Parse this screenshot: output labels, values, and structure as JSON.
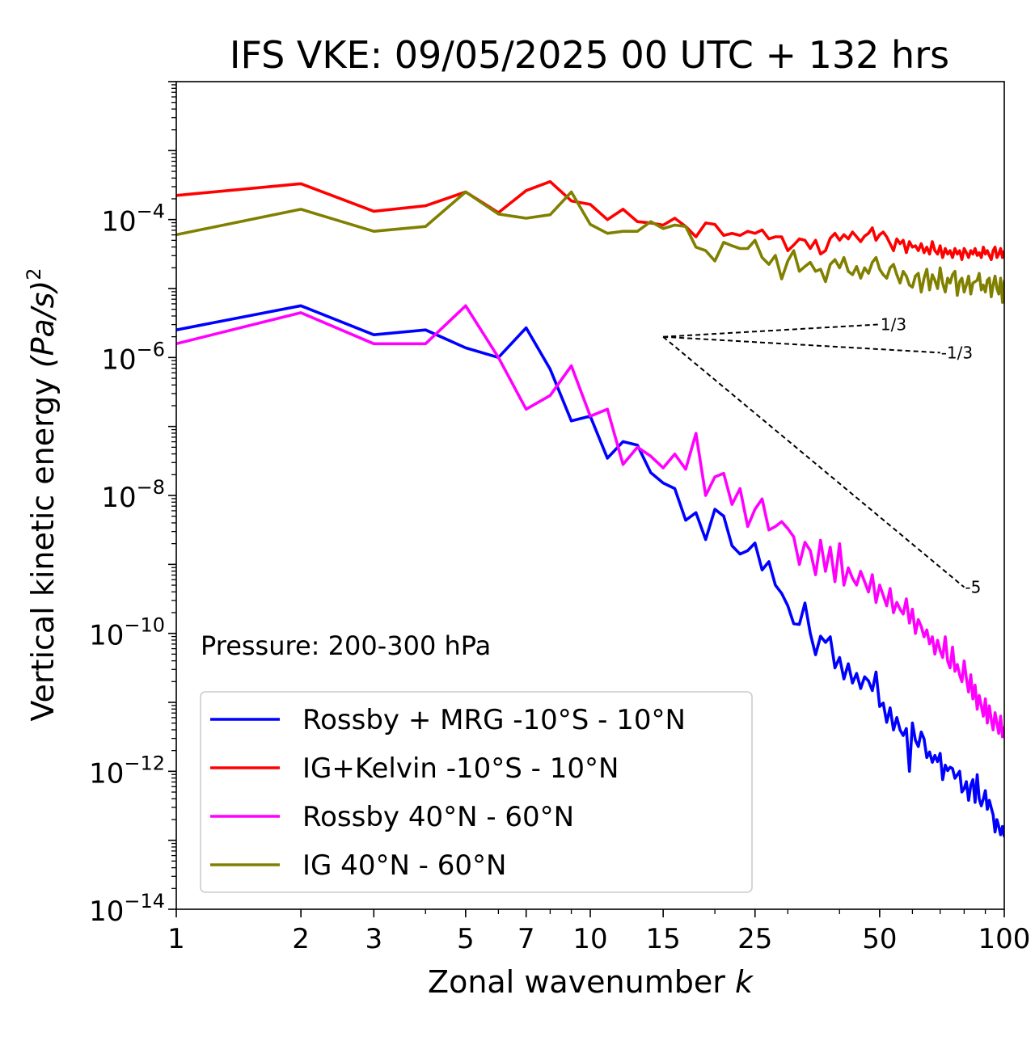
{
  "chart_data": {
    "type": "line",
    "title": "IFS VKE: 09/05/2025 00 UTC + 132 hrs",
    "xlabel": "Zonal wavenumber",
    "xlabel_var": "k",
    "ylabel": "Vertical kinetic energy",
    "ylabel_units": "(Pa/s)",
    "ylabel_power": "2",
    "xscale": "log",
    "yscale": "log",
    "xlim": [
      1,
      100
    ],
    "ylim": [
      1e-14,
      0.01
    ],
    "x_ticks": [
      {
        "value": 1,
        "label": "1"
      },
      {
        "value": 2,
        "label": "2"
      },
      {
        "value": 3,
        "label": "3"
      },
      {
        "value": 5,
        "label": "5"
      },
      {
        "value": 7,
        "label": "7"
      },
      {
        "value": 10,
        "label": "10"
      },
      {
        "value": 15,
        "label": "15"
      },
      {
        "value": 25,
        "label": "25"
      },
      {
        "value": 50,
        "label": "50"
      },
      {
        "value": 100,
        "label": "100"
      }
    ],
    "y_ticks": [
      {
        "value": -4,
        "base": "10",
        "exp": "−4"
      },
      {
        "value": -6,
        "base": "10",
        "exp": "−6"
      },
      {
        "value": -8,
        "base": "10",
        "exp": "−8"
      },
      {
        "value": -10,
        "base": "10",
        "exp": "−10"
      },
      {
        "value": -12,
        "base": "10",
        "exp": "−12"
      },
      {
        "value": -14,
        "base": "10",
        "exp": "−14"
      }
    ],
    "annotation": "Pressure: 200-300 hPa",
    "legend_position": "lower-left",
    "reference_slopes": [
      {
        "label": "1/3",
        "x": [
          15,
          50
        ],
        "log10_y": [
          -5.7,
          -5.52
        ]
      },
      {
        "label": "-1/3",
        "x": [
          15,
          70
        ],
        "log10_y": [
          -5.7,
          -5.93
        ]
      },
      {
        "label": "-5",
        "x": [
          15,
          80
        ],
        "log10_y": [
          -5.7,
          -9.33
        ]
      }
    ],
    "series": [
      {
        "name": "Rossby + MRG -10°S - 10°N",
        "color": "#0000ff",
        "x": [
          1,
          2,
          3,
          4,
          5,
          6,
          7,
          8,
          9,
          10,
          11,
          12,
          13,
          14,
          15,
          16,
          17,
          18,
          19,
          20,
          21,
          22,
          23,
          24,
          25,
          26,
          27,
          28,
          29,
          30,
          31,
          32,
          33,
          34,
          35,
          36,
          37,
          38,
          39,
          40,
          41,
          42,
          43,
          44,
          45,
          46,
          47,
          48,
          49,
          50,
          51,
          52,
          53,
          54,
          55,
          56,
          57,
          58,
          59,
          60,
          61,
          62,
          63,
          64,
          65,
          66,
          67,
          68,
          69,
          70,
          71,
          72,
          73,
          74,
          75,
          76,
          77,
          78,
          79,
          80,
          81,
          82,
          83,
          84,
          85,
          86,
          87,
          88,
          89,
          90,
          91,
          92,
          93,
          94,
          95,
          96,
          97,
          98,
          99,
          100
        ],
        "log10_y": [
          -5.6,
          -5.25,
          -5.67,
          -5.6,
          -5.86,
          -6.0,
          -5.57,
          -6.17,
          -6.92,
          -6.85,
          -7.46,
          -7.22,
          -7.27,
          -7.67,
          -7.82,
          -7.9,
          -8.36,
          -8.25,
          -8.64,
          -8.2,
          -8.3,
          -8.73,
          -8.85,
          -8.8,
          -8.69,
          -9.08,
          -8.96,
          -9.3,
          -9.42,
          -9.6,
          -9.86,
          -9.87,
          -9.56,
          -10.0,
          -10.31,
          -10.04,
          -10.13,
          -10.05,
          -10.5,
          -10.35,
          -10.66,
          -10.44,
          -10.72,
          -10.58,
          -10.8,
          -10.63,
          -10.69,
          -10.83,
          -10.56,
          -11.06,
          -11.01,
          -11.29,
          -11.08,
          -11.4,
          -11.22,
          -11.4,
          -11.48,
          -11.38,
          -12.0,
          -11.3,
          -11.55,
          -11.64,
          -11.43,
          -11.53,
          -11.8,
          -11.72,
          -11.87,
          -11.77,
          -11.86,
          -11.74,
          -12.12,
          -11.91,
          -11.99,
          -11.94,
          -11.96,
          -12.1,
          -12.05,
          -12.0,
          -12.3,
          -12.25,
          -12.15,
          -12.42,
          -12.2,
          -12.12,
          -12.45,
          -12.05,
          -12.4,
          -12.5,
          -12.4,
          -12.28,
          -12.55,
          -12.42,
          -12.53,
          -12.63,
          -12.88,
          -12.7,
          -12.8,
          -12.92,
          -12.8,
          -12.95
        ]
      },
      {
        "name": "IG+Kelvin -10°S - 10°N",
        "color": "#ff0000",
        "x": [
          1,
          2,
          3,
          4,
          5,
          6,
          7,
          8,
          9,
          10,
          11,
          12,
          13,
          14,
          15,
          16,
          17,
          18,
          19,
          20,
          21,
          22,
          23,
          24,
          25,
          26,
          27,
          28,
          29,
          30,
          31,
          32,
          33,
          34,
          35,
          36,
          37,
          38,
          39,
          40,
          41,
          42,
          43,
          44,
          45,
          46,
          47,
          48,
          49,
          50,
          51,
          52,
          53,
          54,
          55,
          56,
          57,
          58,
          59,
          60,
          61,
          62,
          63,
          64,
          65,
          66,
          67,
          68,
          69,
          70,
          71,
          72,
          73,
          74,
          75,
          76,
          77,
          78,
          79,
          80,
          81,
          82,
          83,
          84,
          85,
          86,
          87,
          88,
          89,
          90,
          91,
          92,
          93,
          94,
          95,
          96,
          97,
          98,
          99,
          100
        ],
        "log10_y": [
          -3.65,
          -3.48,
          -3.88,
          -3.8,
          -3.6,
          -3.9,
          -3.58,
          -3.45,
          -3.73,
          -3.78,
          -4.0,
          -3.85,
          -4.03,
          -4.05,
          -4.08,
          -3.98,
          -4.1,
          -4.25,
          -4.05,
          -4.07,
          -4.23,
          -4.2,
          -4.23,
          -4.17,
          -4.2,
          -4.15,
          -4.28,
          -4.25,
          -4.25,
          -4.45,
          -4.37,
          -4.28,
          -4.3,
          -4.42,
          -4.3,
          -4.5,
          -4.45,
          -4.27,
          -4.2,
          -4.3,
          -4.22,
          -4.28,
          -4.18,
          -4.25,
          -4.32,
          -4.24,
          -4.2,
          -4.12,
          -4.3,
          -4.22,
          -4.18,
          -4.25,
          -4.35,
          -4.45,
          -4.28,
          -4.35,
          -4.3,
          -4.48,
          -4.32,
          -4.4,
          -4.38,
          -4.45,
          -4.35,
          -4.48,
          -4.4,
          -4.5,
          -4.32,
          -4.45,
          -4.5,
          -4.38,
          -4.55,
          -4.42,
          -4.5,
          -4.45,
          -4.55,
          -4.42,
          -4.5,
          -4.45,
          -4.58,
          -4.42,
          -4.48,
          -4.55,
          -4.45,
          -4.5,
          -4.42,
          -4.52,
          -4.48,
          -4.55,
          -4.4,
          -4.5,
          -4.45,
          -4.52,
          -4.58,
          -4.45,
          -4.4,
          -4.55,
          -4.5,
          -4.42,
          -4.55,
          -4.45
        ]
      },
      {
        "name": "Rossby 40°N - 60°N",
        "color": "#ff00ff",
        "x": [
          1,
          2,
          3,
          4,
          5,
          6,
          7,
          8,
          9,
          10,
          11,
          12,
          13,
          14,
          15,
          16,
          17,
          18,
          19,
          20,
          21,
          22,
          23,
          24,
          25,
          26,
          27,
          28,
          29,
          30,
          31,
          32,
          33,
          34,
          35,
          36,
          37,
          38,
          39,
          40,
          41,
          42,
          43,
          44,
          45,
          46,
          47,
          48,
          49,
          50,
          51,
          52,
          53,
          54,
          55,
          56,
          57,
          58,
          59,
          60,
          61,
          62,
          63,
          64,
          65,
          66,
          67,
          68,
          69,
          70,
          71,
          72,
          73,
          74,
          75,
          76,
          77,
          78,
          79,
          80,
          81,
          82,
          83,
          84,
          85,
          86,
          87,
          88,
          89,
          90,
          91,
          92,
          93,
          94,
          95,
          96,
          97,
          98,
          99,
          100
        ],
        "log10_y": [
          -5.8,
          -5.35,
          -5.8,
          -5.8,
          -5.25,
          -6.0,
          -6.75,
          -6.55,
          -6.12,
          -6.85,
          -6.75,
          -7.55,
          -7.3,
          -7.43,
          -7.6,
          -7.4,
          -7.62,
          -7.1,
          -8.0,
          -7.73,
          -7.68,
          -8.13,
          -7.9,
          -8.45,
          -8.2,
          -8.05,
          -8.5,
          -8.45,
          -8.38,
          -8.48,
          -8.6,
          -9.0,
          -8.68,
          -8.8,
          -9.15,
          -8.65,
          -9.1,
          -8.75,
          -9.25,
          -8.7,
          -9.3,
          -9.05,
          -9.2,
          -9.3,
          -9.1,
          -9.25,
          -9.4,
          -9.15,
          -9.55,
          -9.3,
          -9.45,
          -9.6,
          -9.35,
          -9.7,
          -9.55,
          -9.65,
          -9.72,
          -9.5,
          -9.85,
          -9.65,
          -10.0,
          -9.8,
          -9.9,
          -10.05,
          -9.95,
          -10.15,
          -10.05,
          -10.3,
          -10.1,
          -10.25,
          -10.35,
          -10.05,
          -10.4,
          -10.5,
          -10.2,
          -10.55,
          -10.45,
          -10.6,
          -10.7,
          -10.4,
          -10.65,
          -10.85,
          -10.6,
          -10.95,
          -10.75,
          -11.1,
          -10.9,
          -11.05,
          -11.2,
          -10.95,
          -11.3,
          -11.05,
          -11.25,
          -11.4,
          -11.15,
          -11.3,
          -11.45,
          -11.2,
          -11.5,
          -11.35
        ]
      },
      {
        "name": "IG 40°N - 60°N",
        "color": "#808000",
        "x": [
          1,
          2,
          3,
          4,
          5,
          6,
          7,
          8,
          9,
          10,
          11,
          12,
          13,
          14,
          15,
          16,
          17,
          18,
          19,
          20,
          21,
          22,
          23,
          24,
          25,
          26,
          27,
          28,
          29,
          30,
          31,
          32,
          33,
          34,
          35,
          36,
          37,
          38,
          39,
          40,
          41,
          42,
          43,
          44,
          45,
          46,
          47,
          48,
          49,
          50,
          51,
          52,
          53,
          54,
          55,
          56,
          57,
          58,
          59,
          60,
          61,
          62,
          63,
          64,
          65,
          66,
          67,
          68,
          69,
          70,
          71,
          72,
          73,
          74,
          75,
          76,
          77,
          78,
          79,
          80,
          81,
          82,
          83,
          84,
          85,
          86,
          87,
          88,
          89,
          90,
          91,
          92,
          93,
          94,
          95,
          96,
          97,
          98,
          99,
          100
        ],
        "log10_y": [
          -4.22,
          -3.85,
          -4.17,
          -4.1,
          -3.6,
          -3.92,
          -3.98,
          -3.93,
          -3.6,
          -4.07,
          -4.2,
          -4.17,
          -4.17,
          -4.03,
          -4.13,
          -4.08,
          -4.1,
          -4.4,
          -4.45,
          -4.6,
          -4.33,
          -4.38,
          -4.42,
          -4.42,
          -4.3,
          -4.55,
          -4.65,
          -4.52,
          -4.86,
          -4.6,
          -4.45,
          -4.75,
          -4.68,
          -4.62,
          -4.75,
          -4.72,
          -4.9,
          -4.65,
          -4.58,
          -4.7,
          -4.55,
          -4.75,
          -4.8,
          -4.68,
          -4.85,
          -4.7,
          -4.78,
          -4.62,
          -4.55,
          -4.72,
          -4.8,
          -4.85,
          -4.7,
          -4.65,
          -4.8,
          -4.92,
          -4.75,
          -4.82,
          -4.95,
          -4.98,
          -4.82,
          -4.78,
          -5.05,
          -4.85,
          -4.72,
          -5.02,
          -4.8,
          -4.88,
          -5.0,
          -4.7,
          -4.92,
          -5.05,
          -4.85,
          -4.92,
          -4.8,
          -4.75,
          -5.1,
          -4.9,
          -4.85,
          -5.05,
          -4.95,
          -4.82,
          -5.08,
          -4.92,
          -4.9,
          -4.88,
          -4.78,
          -5.02,
          -4.95,
          -5.05,
          -4.88,
          -4.85,
          -5.12,
          -4.95,
          -4.82,
          -5.0,
          -5.08,
          -4.85,
          -5.2,
          -4.88
        ]
      }
    ]
  }
}
